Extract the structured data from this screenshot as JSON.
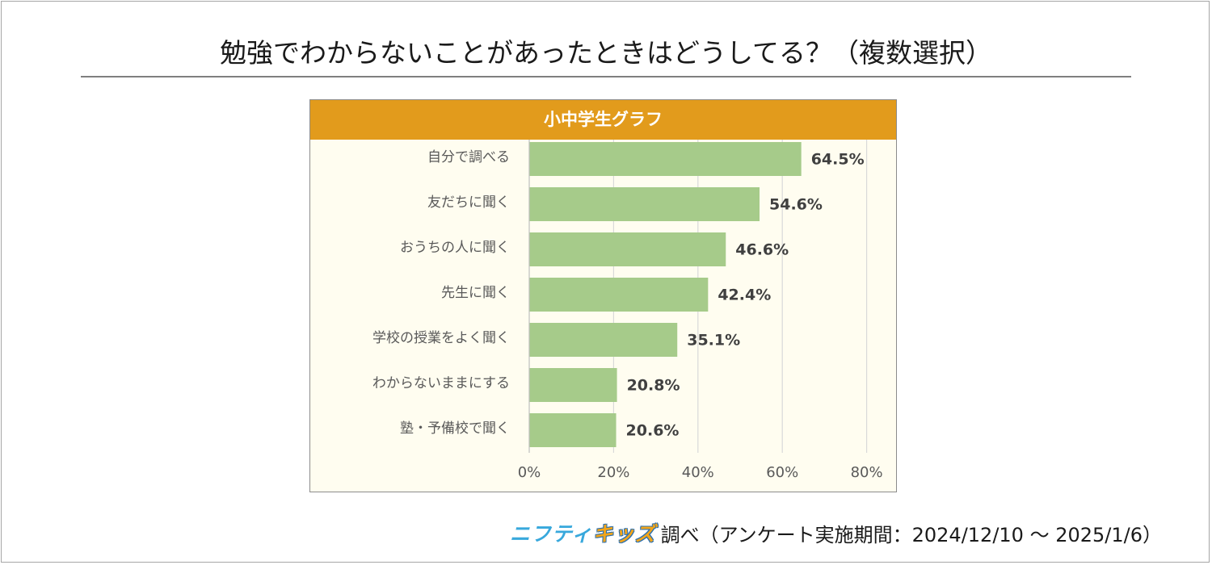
{
  "title": "勉強でわからないことがあったときはどうしてる？（複数選択）",
  "panel_title": "小中学生グラフ",
  "footer": {
    "brand_part1": "ニフティ",
    "brand_part2": "キッズ",
    "text": "調べ（アンケート実施期間：2024/12/10 ～ 2025/1/6）"
  },
  "colors": {
    "bar": "#a6cb8a",
    "header": "#e29b1c",
    "panel_bg": "#fffdf0",
    "grid": "#d9d9d9",
    "value_label": "#404040",
    "category_label": "#595959"
  },
  "chart_data": {
    "type": "bar",
    "orientation": "horizontal",
    "title": "小中学生グラフ",
    "categories": [
      "自分で調べる",
      "友だちに聞く",
      "おうちの人に聞く",
      "先生に聞く",
      "学校の授業をよく聞く",
      "わからないままにする",
      "塾・予備校で聞く"
    ],
    "values": [
      64.5,
      54.6,
      46.6,
      42.4,
      35.1,
      20.8,
      20.6
    ],
    "value_labels": [
      "64.5%",
      "54.6%",
      "46.6%",
      "42.4%",
      "35.1%",
      "20.8%",
      "20.6%"
    ],
    "xlim": [
      0,
      80
    ],
    "xticks": [
      0,
      20,
      40,
      60,
      80
    ],
    "xtick_labels": [
      "0%",
      "20%",
      "40%",
      "60%",
      "80%"
    ],
    "grid": true,
    "legend": "none"
  }
}
